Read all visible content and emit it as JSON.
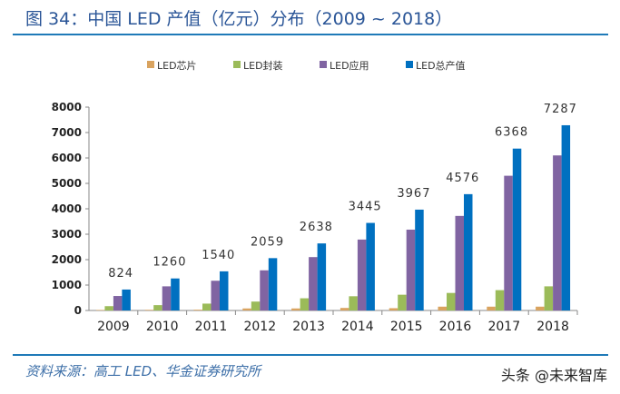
{
  "header": {
    "title": "图 34：中国 LED 产值（亿元）分布（2009 ~ 2018）"
  },
  "footer": {
    "source": "资料来源：高工 LED、华金证券研究所",
    "watermark": "头条 @未来智库"
  },
  "chart_data": {
    "type": "bar",
    "title": "",
    "xlabel": "",
    "ylabel": "",
    "ylim": [
      0,
      8000
    ],
    "yticks": [
      0,
      1000,
      2000,
      3000,
      4000,
      5000,
      6000,
      7000,
      8000
    ],
    "grid": false,
    "legend": "top",
    "categories": [
      "2009",
      "2010",
      "2011",
      "2012",
      "2013",
      "2014",
      "2015",
      "2016",
      "2017",
      "2018"
    ],
    "series": [
      {
        "name": "LED芯片",
        "color": "#d9a35f",
        "values": [
          20,
          25,
          30,
          80,
          80,
          100,
          90,
          150,
          150,
          150
        ]
      },
      {
        "name": "LED封装",
        "color": "#9bbb59",
        "values": [
          170,
          210,
          270,
          350,
          480,
          560,
          620,
          690,
          800,
          950
        ]
      },
      {
        "name": "LED应用",
        "color": "#8064a2",
        "values": [
          570,
          950,
          1170,
          1580,
          2100,
          2790,
          3180,
          3720,
          5300,
          6100
        ]
      },
      {
        "name": "LED总产值",
        "color": "#0070c0",
        "values": [
          824,
          1260,
          1540,
          2059,
          2638,
          3445,
          3967,
          4576,
          6368,
          7287
        ],
        "data_labels": [
          "824",
          "1260",
          "1540",
          "2059",
          "2638",
          "3445",
          "3967",
          "4576",
          "6368",
          "7287"
        ]
      }
    ]
  }
}
